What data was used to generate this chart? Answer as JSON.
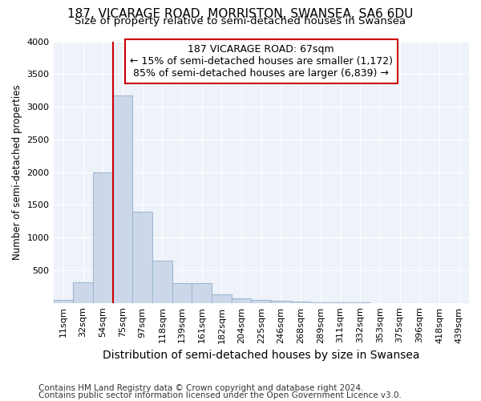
{
  "title": "187, VICARAGE ROAD, MORRISTON, SWANSEA, SA6 6DU",
  "subtitle": "Size of property relative to semi-detached houses in Swansea",
  "xlabel": "Distribution of semi-detached houses by size in Swansea",
  "ylabel": "Number of semi-detached properties",
  "footer1": "Contains HM Land Registry data © Crown copyright and database right 2024.",
  "footer2": "Contains public sector information licensed under the Open Government Licence v3.0.",
  "annotation_line1": "187 VICARAGE ROAD: 67sqm",
  "annotation_line2": "← 15% of semi-detached houses are smaller (1,172)",
  "annotation_line3": "85% of semi-detached houses are larger (6,839) →",
  "bar_color": "#ccd8ea",
  "bar_edge_color": "#a0b8d0",
  "vline_color": "#cc0000",
  "annotation_box_edge": "#cc0000",
  "background_color": "#eef2f9",
  "categories": [
    "11sqm",
    "32sqm",
    "54sqm",
    "75sqm",
    "97sqm",
    "118sqm",
    "139sqm",
    "161sqm",
    "182sqm",
    "204sqm",
    "225sqm",
    "246sqm",
    "268sqm",
    "289sqm",
    "311sqm",
    "332sqm",
    "353sqm",
    "375sqm",
    "396sqm",
    "418sqm",
    "439sqm"
  ],
  "values": [
    50,
    315,
    2000,
    3175,
    1400,
    650,
    300,
    300,
    130,
    70,
    50,
    35,
    25,
    10,
    5,
    3,
    2,
    1,
    1,
    1,
    1
  ],
  "ylim": [
    0,
    4000
  ],
  "yticks": [
    0,
    500,
    1000,
    1500,
    2000,
    2500,
    3000,
    3500,
    4000
  ],
  "vline_x": 2.5,
  "title_fontsize": 11,
  "subtitle_fontsize": 9.5,
  "xlabel_fontsize": 10,
  "ylabel_fontsize": 8.5,
  "tick_fontsize": 8,
  "annotation_fontsize": 9,
  "footer_fontsize": 7.5
}
